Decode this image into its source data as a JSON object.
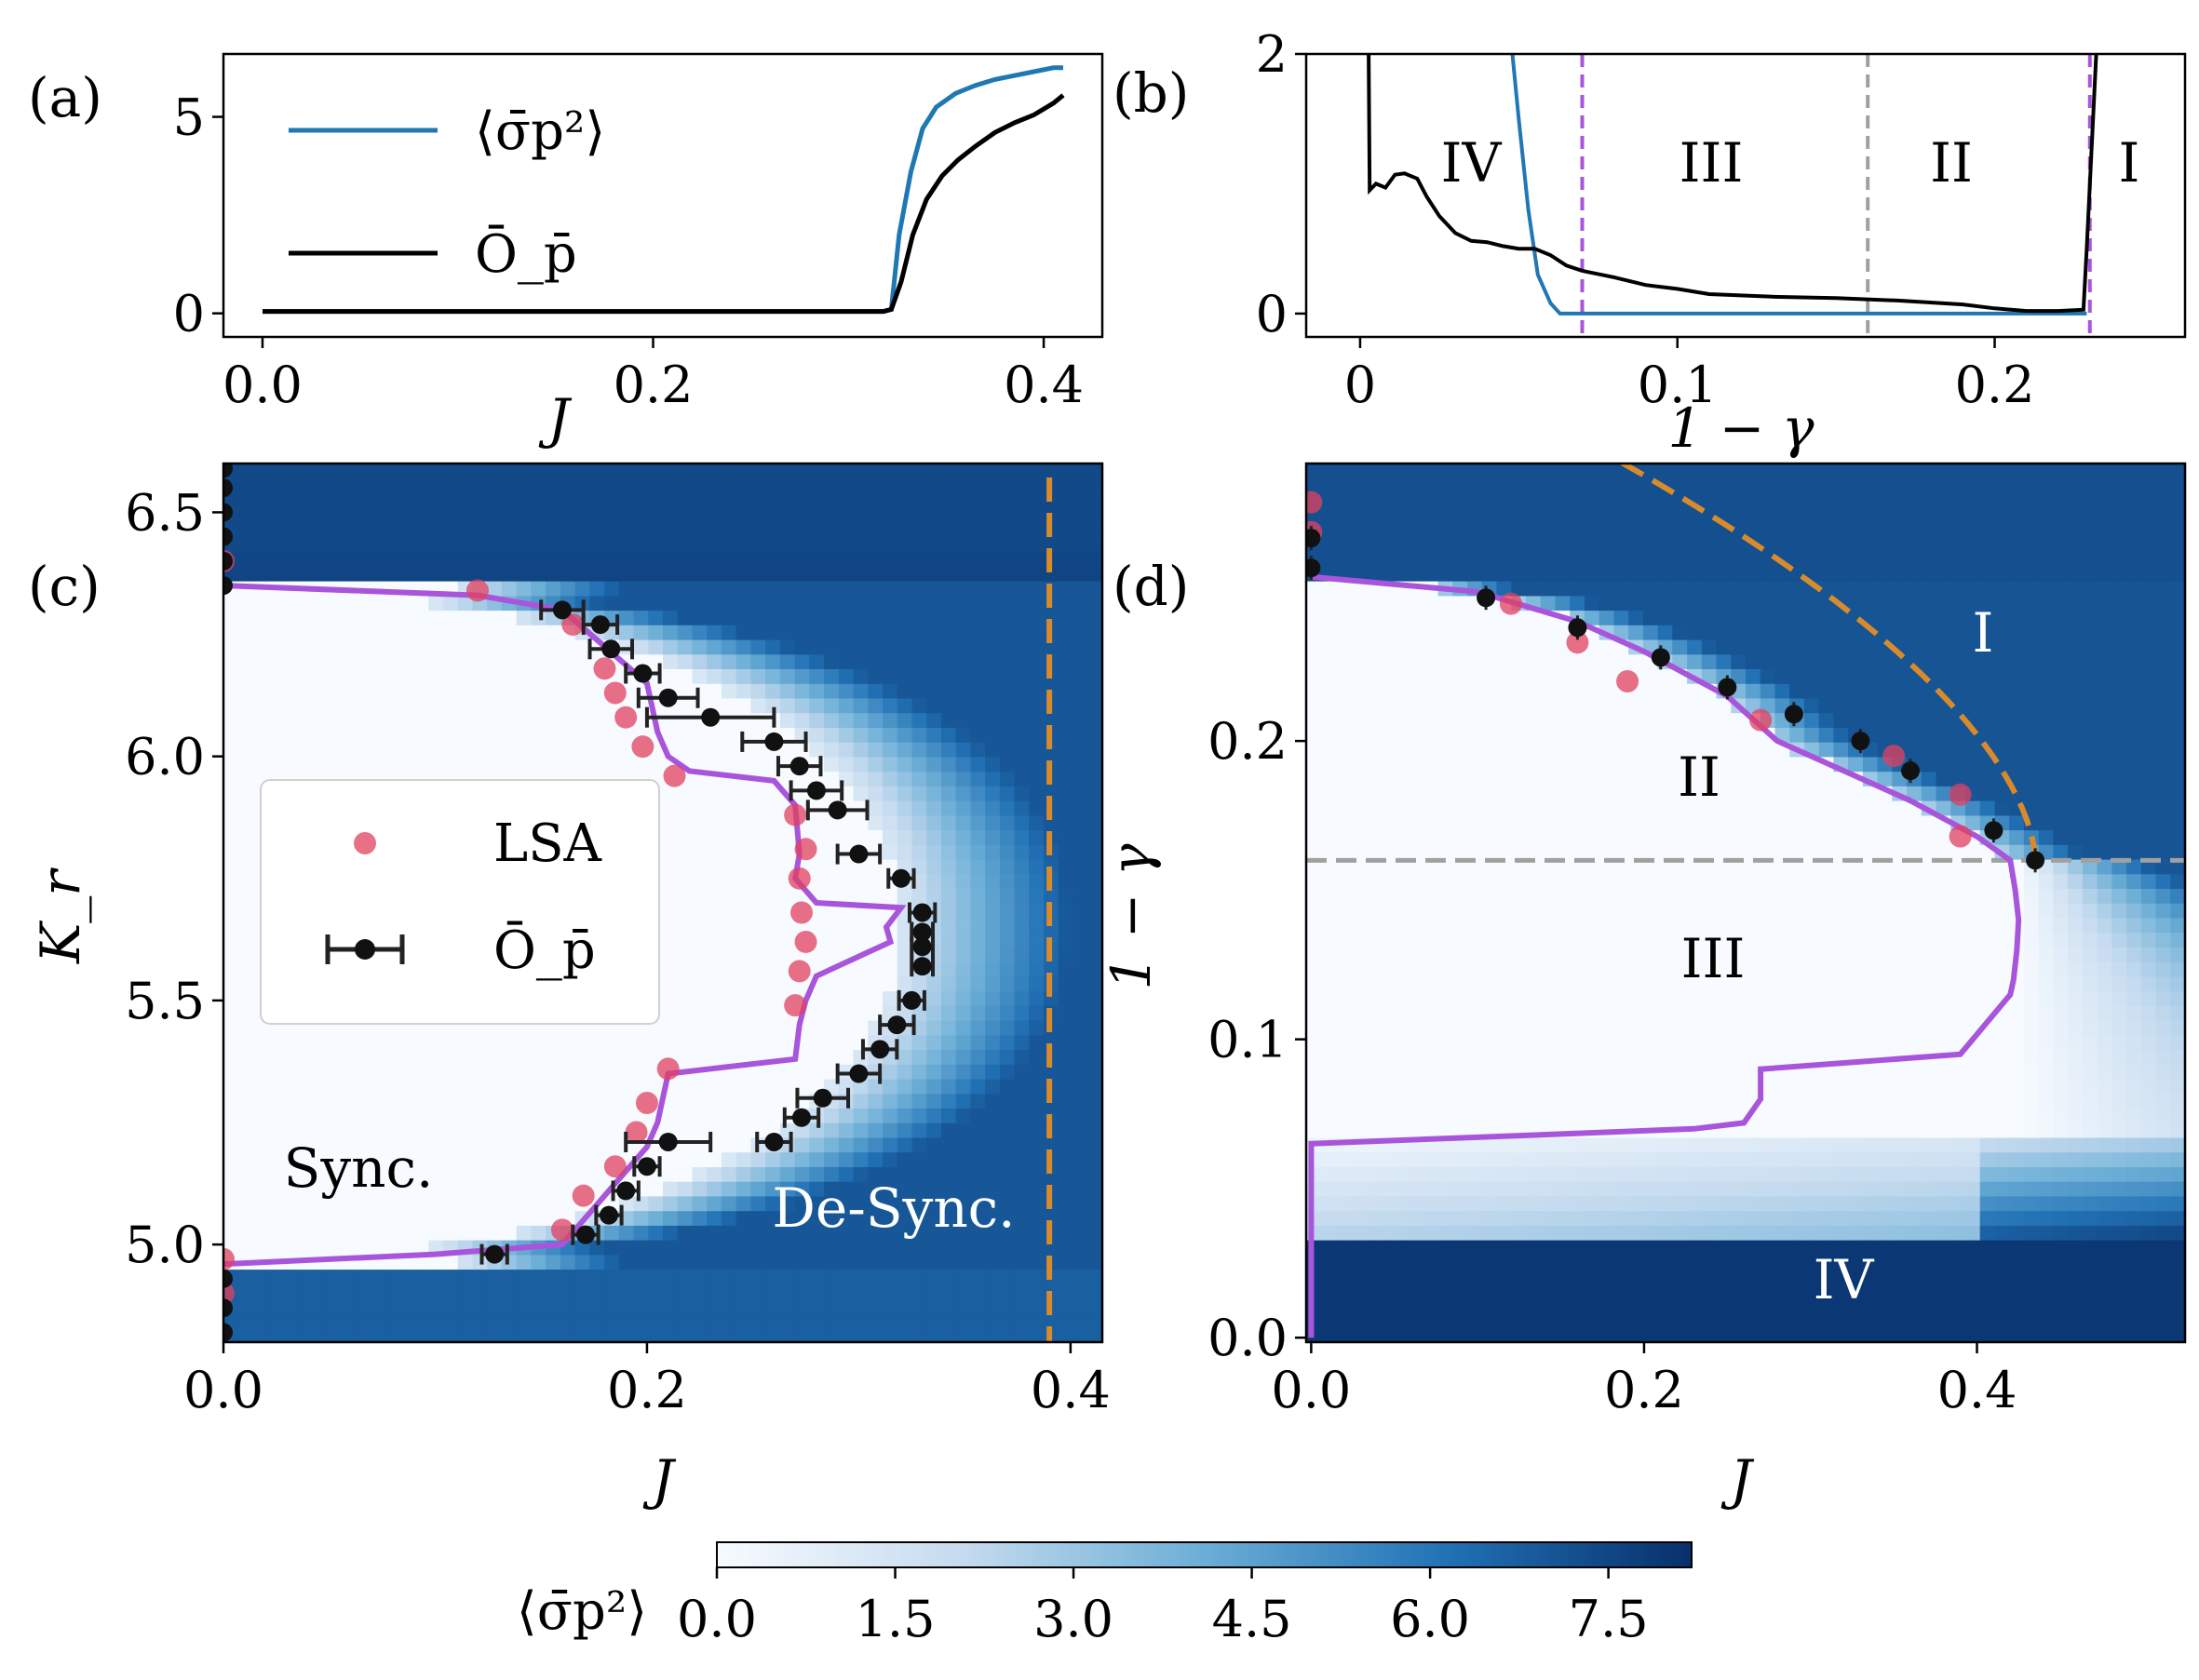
{
  "chart_data": [
    {
      "panel": "(a)",
      "type": "line",
      "xlabel": "J",
      "xlim": [
        -0.02,
        0.43
      ],
      "ylim": [
        -0.6,
        6.6
      ],
      "xticks": [
        "0.0",
        "0.2",
        "0.4"
      ],
      "xtick_values": [
        0.0,
        0.2,
        0.4
      ],
      "yticks": [
        "0",
        "5"
      ],
      "ytick_values": [
        0,
        5
      ],
      "legend": [
        "⟨σ̄p²⟩",
        "Ō_p̄"
      ],
      "series": [
        {
          "name": "⟨σ̄p²⟩",
          "color": "#1f77b4",
          "x": [
            0.0,
            0.1,
            0.2,
            0.3,
            0.318,
            0.322,
            0.326,
            0.332,
            0.338,
            0.345,
            0.355,
            0.365,
            0.375,
            0.385,
            0.395,
            0.405,
            0.41
          ],
          "y": [
            0.05,
            0.05,
            0.05,
            0.05,
            0.05,
            0.1,
            2.0,
            3.6,
            4.7,
            5.25,
            5.6,
            5.8,
            5.95,
            6.05,
            6.15,
            6.25,
            6.25
          ]
        },
        {
          "name": "Ō_p̄",
          "color": "#000000",
          "x": [
            0.0,
            0.1,
            0.2,
            0.3,
            0.318,
            0.322,
            0.327,
            0.333,
            0.34,
            0.348,
            0.356,
            0.365,
            0.375,
            0.385,
            0.395,
            0.405,
            0.41
          ],
          "y": [
            0.05,
            0.05,
            0.05,
            0.05,
            0.05,
            0.1,
            0.8,
            2.0,
            2.9,
            3.5,
            3.9,
            4.25,
            4.6,
            4.85,
            5.05,
            5.35,
            5.55
          ]
        }
      ]
    },
    {
      "panel": "(b)",
      "type": "line",
      "xlabel": "1 − γ",
      "xlim": [
        -0.017,
        0.26
      ],
      "ylim": [
        -0.18,
        2.0
      ],
      "xticks": [
        "0",
        "0.1",
        "0.2"
      ],
      "xtick_values": [
        0.0,
        0.1,
        0.2
      ],
      "yticks": [
        "0",
        "2"
      ],
      "ytick_values": [
        0,
        2
      ],
      "regions": [
        "IV",
        "III",
        "II",
        "I"
      ],
      "vlines": [
        {
          "x": 0.07,
          "color": "#a855db",
          "style": "dashed"
        },
        {
          "x": 0.16,
          "color": "#a0a0a0",
          "style": "dashed"
        },
        {
          "x": 0.23,
          "color": "#a855db",
          "style": "dashed"
        }
      ],
      "series": [
        {
          "name": "⟨σ̄p²⟩",
          "color": "#1f77b4",
          "x": [
            0.048,
            0.05,
            0.053,
            0.056,
            0.06,
            0.063,
            0.07,
            0.1,
            0.2,
            0.229
          ],
          "y": [
            2.0,
            1.5,
            0.8,
            0.3,
            0.08,
            0.0,
            0.0,
            0.0,
            0.0,
            0.0
          ]
        },
        {
          "name": "Ō_p̄",
          "color": "#000000",
          "x": [
            0.0027,
            0.003,
            0.005,
            0.008,
            0.011,
            0.014,
            0.018,
            0.021,
            0.025,
            0.03,
            0.035,
            0.04,
            0.045,
            0.05,
            0.055,
            0.06,
            0.065,
            0.07,
            0.08,
            0.09,
            0.1,
            0.11,
            0.13,
            0.15,
            0.17,
            0.19,
            0.2,
            0.21,
            0.22,
            0.228,
            0.229,
            0.231,
            0.232
          ],
          "y": [
            2.0,
            0.95,
            1.0,
            0.97,
            1.07,
            1.08,
            1.04,
            0.9,
            0.75,
            0.62,
            0.56,
            0.55,
            0.52,
            0.5,
            0.5,
            0.45,
            0.37,
            0.33,
            0.28,
            0.22,
            0.19,
            0.15,
            0.13,
            0.12,
            0.1,
            0.07,
            0.04,
            0.02,
            0.02,
            0.03,
            0.5,
            1.5,
            2.0
          ]
        }
      ]
    },
    {
      "panel": "(c)",
      "type": "heatmap",
      "xlabel": "J",
      "ylabel": "K_r",
      "xlim": [
        0.0,
        0.415
      ],
      "ylim": [
        4.8,
        6.6
      ],
      "xticks": [
        "0.0",
        "0.2",
        "0.4"
      ],
      "xtick_values": [
        0.0,
        0.2,
        0.4
      ],
      "yticks": [
        "5.0",
        "5.5",
        "6.0",
        "6.5"
      ],
      "ytick_values": [
        5.0,
        5.5,
        6.0,
        6.5
      ],
      "labels": {
        "sync": "Sync.",
        "desync": "De-Sync."
      },
      "legend": [
        "LSA",
        "Ō_p̄"
      ],
      "boundary_purple": {
        "J": [
          0.0,
          0.12,
          0.16,
          0.2,
          0.205,
          0.21,
          0.22,
          0.26,
          0.27,
          0.272,
          0.27,
          0.28,
          0.32,
          0.313,
          0.315,
          0.305,
          0.28,
          0.275,
          0.272,
          0.27,
          0.21,
          0.205,
          0.2,
          0.16,
          0.1,
          0.0
        ],
        "Kr": [
          6.35,
          6.33,
          6.3,
          6.15,
          6.05,
          6.0,
          5.97,
          5.95,
          5.9,
          5.8,
          5.75,
          5.7,
          5.69,
          5.65,
          5.62,
          5.6,
          5.55,
          5.5,
          5.45,
          5.38,
          5.35,
          5.25,
          5.2,
          5.0,
          4.98,
          4.96
        ]
      },
      "lsa_points": {
        "J": [
          0.0,
          0.0,
          0.0,
          0.12,
          0.165,
          0.18,
          0.185,
          0.19,
          0.198,
          0.213,
          0.27,
          0.275,
          0.272,
          0.273,
          0.275,
          0.272,
          0.27,
          0.21,
          0.2,
          0.195,
          0.185,
          0.17,
          0.16
        ],
        "Kr": [
          4.97,
          4.9,
          6.4,
          6.34,
          6.27,
          6.18,
          6.13,
          6.08,
          6.02,
          5.96,
          5.88,
          5.81,
          5.75,
          5.68,
          5.62,
          5.56,
          5.49,
          5.36,
          5.29,
          5.23,
          5.16,
          5.1,
          5.03
        ]
      },
      "order_points": {
        "J": [
          0.0,
          0.0,
          0.0,
          0.0,
          0.0,
          0.0,
          0.0,
          0.0,
          0.0,
          0.16,
          0.178,
          0.183,
          0.198,
          0.21,
          0.23,
          0.26,
          0.272,
          0.28,
          0.29,
          0.3,
          0.32,
          0.33,
          0.33,
          0.33,
          0.33,
          0.325,
          0.318,
          0.31,
          0.3,
          0.283,
          0.273,
          0.26,
          0.21,
          0.2,
          0.19,
          0.182,
          0.171,
          0.128
        ],
        "Kr": [
          6.35,
          6.4,
          6.45,
          6.5,
          6.55,
          6.59,
          4.93,
          4.87,
          4.82,
          6.3,
          6.27,
          6.22,
          6.17,
          6.12,
          6.08,
          6.03,
          5.98,
          5.93,
          5.89,
          5.8,
          5.75,
          5.68,
          5.64,
          5.61,
          5.57,
          5.5,
          5.45,
          5.4,
          5.35,
          5.3,
          5.26,
          5.21,
          5.21,
          5.16,
          5.11,
          5.06,
          5.02,
          4.98
        ]
      },
      "xerr": [
        0,
        0,
        0,
        0,
        0,
        0,
        0,
        0,
        0,
        0.01,
        0.008,
        0.01,
        0.008,
        0.014,
        0.03,
        0.015,
        0.01,
        0.012,
        0.014,
        0.01,
        0.006,
        0.006,
        0.005,
        0.005,
        0.005,
        0.006,
        0.008,
        0.008,
        0.01,
        0.012,
        0.008,
        0.008,
        0.02,
        0.006,
        0.006,
        0.006,
        0.006,
        0.006
      ],
      "vline_J": 0.39
    },
    {
      "panel": "(d)",
      "type": "heatmap",
      "xlabel": "J",
      "ylabel": "1 − γ",
      "xlim": [
        -0.003,
        0.525
      ],
      "ylim": [
        -0.0015,
        0.293
      ],
      "xticks": [
        "0.0",
        "0.2",
        "0.4"
      ],
      "xtick_values": [
        0.0,
        0.2,
        0.4
      ],
      "yticks": [
        "0.0",
        "0.1",
        "0.2"
      ],
      "ytick_values": [
        0.0,
        0.1,
        0.2
      ],
      "regions": [
        "I",
        "II",
        "III",
        "IV"
      ],
      "hline": 0.16,
      "boundary_purple": {
        "J": [
          0.0,
          0.1,
          0.16,
          0.2,
          0.25,
          0.28,
          0.3,
          0.36,
          0.4,
          0.42,
          0.423,
          0.425,
          0.424,
          0.422,
          0.42,
          0.39,
          0.27,
          0.27,
          0.26,
          0.23,
          0.0,
          0.0
        ],
        "gm": [
          0.255,
          0.25,
          0.24,
          0.23,
          0.215,
          0.2,
          0.195,
          0.18,
          0.168,
          0.16,
          0.15,
          0.14,
          0.13,
          0.12,
          0.115,
          0.095,
          0.09,
          0.08,
          0.072,
          0.07,
          0.065,
          0.0
        ]
      },
      "lsa_points": {
        "J": [
          0.0,
          0.0,
          0.12,
          0.16,
          0.19,
          0.27,
          0.35,
          0.39,
          0.39
        ],
        "gm": [
          0.28,
          0.27,
          0.246,
          0.233,
          0.22,
          0.207,
          0.195,
          0.182,
          0.168
        ]
      },
      "order_points": {
        "J": [
          0.0,
          0.0,
          0.105,
          0.16,
          0.21,
          0.25,
          0.29,
          0.33,
          0.36,
          0.41,
          0.435
        ],
        "gm": [
          0.258,
          0.268,
          0.248,
          0.238,
          0.228,
          0.218,
          0.209,
          0.2,
          0.19,
          0.17,
          0.16
        ]
      },
      "orange_curve": {
        "gm_at_Jmax": 0.16,
        "J0": 0.435
      }
    }
  ],
  "colorbar": {
    "label": "⟨σ̄p²⟩",
    "min": 0.0,
    "max": 8.2,
    "ticks": [
      "0.0",
      "1.5",
      "3.0",
      "4.5",
      "6.0",
      "7.5"
    ],
    "tick_values": [
      0.0,
      1.5,
      3.0,
      4.5,
      6.0,
      7.5
    ]
  },
  "panel_labels": [
    "(a)",
    "(b)",
    "(c)",
    "(d)"
  ]
}
